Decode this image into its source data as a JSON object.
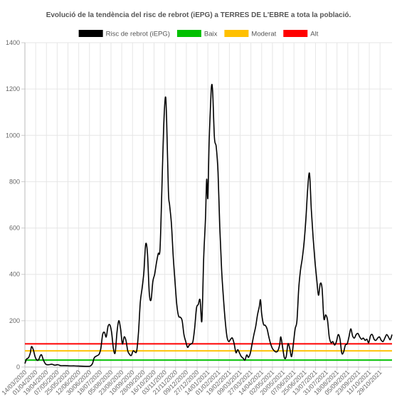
{
  "chart_data": {
    "type": "line",
    "title": "Evolució de la tendència del risc de rebrot (iEPG) a TERRES DE L'EBRE a tota la població.",
    "legend_position": "top",
    "grid": true,
    "ylim": [
      0,
      1400
    ],
    "y_ticks": [
      "0",
      "200",
      "400",
      "600",
      "800",
      "1000",
      "1200",
      "1400"
    ],
    "x_range": [
      "2020-03-14",
      "2021-11-18"
    ],
    "x_tick_labels": [
      "14/03/2020",
      "01/04/2020",
      "19/04/2020",
      "07/05/2020",
      "25/05/2020",
      "12/06/2020",
      "30/06/2020",
      "18/07/2020",
      "05/08/2020",
      "23/08/2020",
      "10/09/2020",
      "28/09/2020",
      "16/10/2020",
      "03/11/2020",
      "21/11/2020",
      "09/12/2020",
      "27/12/2020",
      "14/01/2021",
      "01/02/2021",
      "19/02/2021",
      "09/03/2021",
      "27/03/2021",
      "14/04/2021",
      "02/05/2021",
      "20/05/2021",
      "07/06/2021",
      "25/06/2021",
      "13/07/2021",
      "31/07/2021",
      "18/08/2021",
      "05/09/2021",
      "23/09/2021",
      "11/10/2021",
      "29/10/2021"
    ],
    "series": [
      {
        "name": "Risc de rebrot (iEPG)",
        "color": "#000000",
        "points": [
          [
            "2020-03-14",
            15
          ],
          [
            "2020-03-17",
            35
          ],
          [
            "2020-03-20",
            40
          ],
          [
            "2020-03-23",
            60
          ],
          [
            "2020-03-25",
            88
          ],
          [
            "2020-03-28",
            75
          ],
          [
            "2020-03-31",
            45
          ],
          [
            "2020-04-03",
            30
          ],
          [
            "2020-04-06",
            32
          ],
          [
            "2020-04-09",
            50
          ],
          [
            "2020-04-11",
            52
          ],
          [
            "2020-04-14",
            30
          ],
          [
            "2020-04-18",
            12
          ],
          [
            "2020-04-23",
            10
          ],
          [
            "2020-04-28",
            12
          ],
          [
            "2020-05-03",
            8
          ],
          [
            "2020-05-08",
            10
          ],
          [
            "2020-05-13",
            6
          ],
          [
            "2020-05-20",
            6
          ],
          [
            "2020-05-28",
            5
          ],
          [
            "2020-06-05",
            5
          ],
          [
            "2020-06-15",
            4
          ],
          [
            "2020-06-25",
            3
          ],
          [
            "2020-07-01",
            4
          ],
          [
            "2020-07-05",
            15
          ],
          [
            "2020-07-08",
            40
          ],
          [
            "2020-07-12",
            48
          ],
          [
            "2020-07-16",
            55
          ],
          [
            "2020-07-19",
            80
          ],
          [
            "2020-07-22",
            140
          ],
          [
            "2020-07-25",
            150
          ],
          [
            "2020-07-28",
            130
          ],
          [
            "2020-07-31",
            175
          ],
          [
            "2020-08-03",
            182
          ],
          [
            "2020-08-06",
            150
          ],
          [
            "2020-08-09",
            80
          ],
          [
            "2020-08-12",
            62
          ],
          [
            "2020-08-15",
            150
          ],
          [
            "2020-08-18",
            200
          ],
          [
            "2020-08-21",
            165
          ],
          [
            "2020-08-24",
            100
          ],
          [
            "2020-08-27",
            130
          ],
          [
            "2020-08-30",
            115
          ],
          [
            "2020-09-02",
            70
          ],
          [
            "2020-09-05",
            55
          ],
          [
            "2020-09-08",
            50
          ],
          [
            "2020-09-11",
            70
          ],
          [
            "2020-09-14",
            65
          ],
          [
            "2020-09-17",
            70
          ],
          [
            "2020-09-20",
            150
          ],
          [
            "2020-09-23",
            280
          ],
          [
            "2020-09-26",
            340
          ],
          [
            "2020-09-29",
            410
          ],
          [
            "2020-10-02",
            530
          ],
          [
            "2020-10-05",
            490
          ],
          [
            "2020-10-08",
            320
          ],
          [
            "2020-10-11",
            290
          ],
          [
            "2020-10-14",
            370
          ],
          [
            "2020-10-17",
            400
          ],
          [
            "2020-10-20",
            450
          ],
          [
            "2020-10-23",
            490
          ],
          [
            "2020-10-26",
            510
          ],
          [
            "2020-10-29",
            760
          ],
          [
            "2020-11-01",
            1030
          ],
          [
            "2020-11-04",
            1165
          ],
          [
            "2020-11-06",
            1070
          ],
          [
            "2020-11-09",
            760
          ],
          [
            "2020-11-11",
            700
          ],
          [
            "2020-11-14",
            620
          ],
          [
            "2020-11-17",
            480
          ],
          [
            "2020-11-20",
            370
          ],
          [
            "2020-11-23",
            270
          ],
          [
            "2020-11-26",
            220
          ],
          [
            "2020-11-29",
            215
          ],
          [
            "2020-12-02",
            200
          ],
          [
            "2020-12-05",
            140
          ],
          [
            "2020-12-08",
            110
          ],
          [
            "2020-12-11",
            85
          ],
          [
            "2020-12-14",
            95
          ],
          [
            "2020-12-17",
            100
          ],
          [
            "2020-12-20",
            110
          ],
          [
            "2020-12-23",
            170
          ],
          [
            "2020-12-26",
            255
          ],
          [
            "2020-12-29",
            270
          ],
          [
            "2021-01-01",
            290
          ],
          [
            "2021-01-04",
            200
          ],
          [
            "2021-01-07",
            470
          ],
          [
            "2021-01-10",
            640
          ],
          [
            "2021-01-12",
            810
          ],
          [
            "2021-01-14",
            730
          ],
          [
            "2021-01-16",
            960
          ],
          [
            "2021-01-18",
            1100
          ],
          [
            "2021-01-20",
            1210
          ],
          [
            "2021-01-22",
            1190
          ],
          [
            "2021-01-25",
            990
          ],
          [
            "2021-01-28",
            950
          ],
          [
            "2021-01-31",
            840
          ],
          [
            "2021-02-03",
            600
          ],
          [
            "2021-02-06",
            420
          ],
          [
            "2021-02-09",
            300
          ],
          [
            "2021-02-12",
            200
          ],
          [
            "2021-02-15",
            130
          ],
          [
            "2021-02-18",
            110
          ],
          [
            "2021-02-21",
            120
          ],
          [
            "2021-02-24",
            125
          ],
          [
            "2021-02-27",
            100
          ],
          [
            "2021-03-02",
            62
          ],
          [
            "2021-03-05",
            75
          ],
          [
            "2021-03-08",
            60
          ],
          [
            "2021-03-11",
            45
          ],
          [
            "2021-03-14",
            38
          ],
          [
            "2021-03-17",
            30
          ],
          [
            "2021-03-20",
            52
          ],
          [
            "2021-03-23",
            42
          ],
          [
            "2021-03-26",
            60
          ],
          [
            "2021-03-29",
            100
          ],
          [
            "2021-04-01",
            140
          ],
          [
            "2021-04-04",
            175
          ],
          [
            "2021-04-07",
            225
          ],
          [
            "2021-04-10",
            260
          ],
          [
            "2021-04-12",
            290
          ],
          [
            "2021-04-14",
            230
          ],
          [
            "2021-04-17",
            185
          ],
          [
            "2021-04-20",
            180
          ],
          [
            "2021-04-23",
            165
          ],
          [
            "2021-04-26",
            130
          ],
          [
            "2021-04-29",
            100
          ],
          [
            "2021-05-02",
            80
          ],
          [
            "2021-05-05",
            70
          ],
          [
            "2021-05-08",
            65
          ],
          [
            "2021-05-11",
            70
          ],
          [
            "2021-05-14",
            95
          ],
          [
            "2021-05-16",
            130
          ],
          [
            "2021-05-19",
            85
          ],
          [
            "2021-05-22",
            40
          ],
          [
            "2021-05-25",
            45
          ],
          [
            "2021-05-28",
            100
          ],
          [
            "2021-05-31",
            80
          ],
          [
            "2021-06-03",
            45
          ],
          [
            "2021-06-06",
            100
          ],
          [
            "2021-06-09",
            165
          ],
          [
            "2021-06-12",
            200
          ],
          [
            "2021-06-15",
            340
          ],
          [
            "2021-06-18",
            420
          ],
          [
            "2021-06-21",
            470
          ],
          [
            "2021-06-24",
            540
          ],
          [
            "2021-06-27",
            640
          ],
          [
            "2021-06-30",
            770
          ],
          [
            "2021-07-03",
            835
          ],
          [
            "2021-07-06",
            680
          ],
          [
            "2021-07-09",
            560
          ],
          [
            "2021-07-12",
            460
          ],
          [
            "2021-07-15",
            380
          ],
          [
            "2021-07-18",
            310
          ],
          [
            "2021-07-21",
            360
          ],
          [
            "2021-07-24",
            340
          ],
          [
            "2021-07-27",
            210
          ],
          [
            "2021-07-30",
            225
          ],
          [
            "2021-08-02",
            205
          ],
          [
            "2021-08-05",
            130
          ],
          [
            "2021-08-08",
            105
          ],
          [
            "2021-08-11",
            110
          ],
          [
            "2021-08-14",
            95
          ],
          [
            "2021-08-17",
            110
          ],
          [
            "2021-08-20",
            140
          ],
          [
            "2021-08-23",
            120
          ],
          [
            "2021-08-26",
            60
          ],
          [
            "2021-08-29",
            65
          ],
          [
            "2021-09-01",
            95
          ],
          [
            "2021-09-04",
            100
          ],
          [
            "2021-09-07",
            130
          ],
          [
            "2021-09-10",
            165
          ],
          [
            "2021-09-13",
            135
          ],
          [
            "2021-09-16",
            125
          ],
          [
            "2021-09-19",
            140
          ],
          [
            "2021-09-22",
            145
          ],
          [
            "2021-09-25",
            130
          ],
          [
            "2021-09-28",
            120
          ],
          [
            "2021-10-01",
            125
          ],
          [
            "2021-10-04",
            115
          ],
          [
            "2021-10-07",
            120
          ],
          [
            "2021-10-10",
            105
          ],
          [
            "2021-10-13",
            135
          ],
          [
            "2021-10-16",
            140
          ],
          [
            "2021-10-19",
            120
          ],
          [
            "2021-10-22",
            115
          ],
          [
            "2021-10-25",
            125
          ],
          [
            "2021-10-28",
            130
          ],
          [
            "2021-10-31",
            115
          ],
          [
            "2021-11-03",
            110
          ],
          [
            "2021-11-06",
            125
          ],
          [
            "2021-11-09",
            140
          ],
          [
            "2021-11-12",
            130
          ],
          [
            "2021-11-15",
            118
          ],
          [
            "2021-11-18",
            140
          ]
        ]
      },
      {
        "name": "Baix",
        "color": "#00c000",
        "value": 30
      },
      {
        "name": "Moderat",
        "color": "#ffc000",
        "value": 70
      },
      {
        "name": "Alt",
        "color": "#ff0000",
        "value": 100
      }
    ]
  }
}
